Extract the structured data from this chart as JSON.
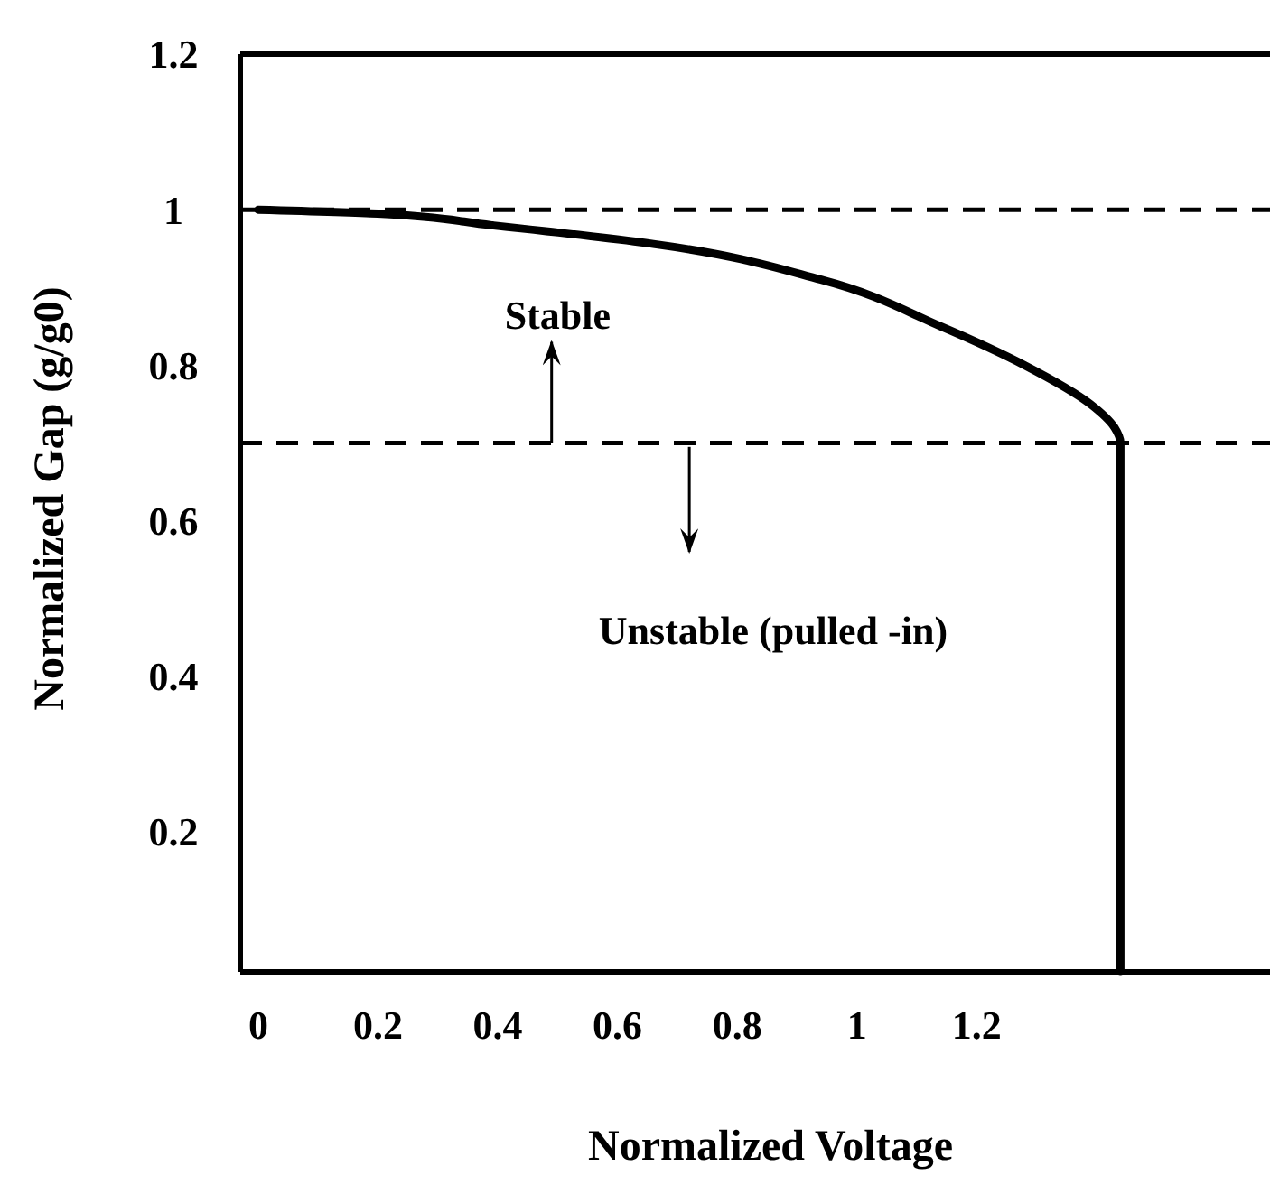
{
  "chart_data": {
    "type": "line",
    "xlabel": "Normalized Voltage",
    "ylabel": "Normalized Gap (g/g0)",
    "xlim": [
      -0.03,
      1.72
    ],
    "ylim": [
      0.02,
      1.2
    ],
    "xticks": [
      0,
      0.2,
      0.4,
      0.6,
      0.8,
      1,
      1.2
    ],
    "yticks": [
      0.2,
      0.4,
      0.6,
      0.8,
      1,
      1.2
    ],
    "series": [
      {
        "color": "#000000",
        "x": [
          0,
          0.2,
          0.39,
          0.66,
          0.94,
          1.14,
          1.28,
          1.39,
          1.43,
          1.44,
          1.44
        ],
        "values": [
          1,
          0.995,
          0.98,
          0.956,
          0.91,
          0.85,
          0.8,
          0.75,
          0.72,
          0.7,
          0.02
        ]
      }
    ],
    "ref_lines": [
      {
        "axis": "y",
        "value": 1,
        "line_style": "dashed",
        "color": "#000000"
      },
      {
        "axis": "y",
        "value": 0.7,
        "line_style": "dashed",
        "color": "#000000"
      }
    ],
    "annotations": [
      "Stable",
      "Unstable (pulled -in)"
    ],
    "grid": false,
    "marker": "none",
    "line_style": "solid"
  }
}
